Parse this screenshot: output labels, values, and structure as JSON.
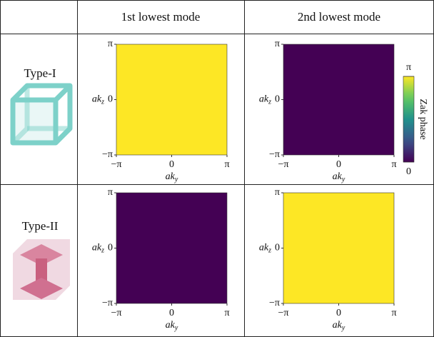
{
  "table": {
    "header": [
      "1st lowest mode",
      "2nd lowest mode"
    ],
    "rows": [
      "Type-I",
      "Type-II"
    ]
  },
  "chart_data": [
    {
      "type": "heatmap",
      "z": [
        [
          3.14159
        ]
      ],
      "xlim": [
        -3.14159,
        3.14159
      ],
      "ylim": [
        -3.14159,
        3.14159
      ],
      "xticks": [
        {
          "value": -3.14159,
          "label": "−π"
        },
        0,
        {
          "value": 3.14159,
          "label": "π"
        }
      ],
      "yticks": [
        {
          "value": -3.14159,
          "label": "−π"
        },
        0,
        {
          "value": 3.14159,
          "label": "π"
        }
      ],
      "xlabel": [
        "ak",
        "y"
      ],
      "ylabel": [
        "ak",
        "z"
      ]
    },
    {
      "type": "heatmap",
      "z": [
        [
          0
        ]
      ],
      "xlim": [
        -3.14159,
        3.14159
      ],
      "ylim": [
        -3.14159,
        3.14159
      ],
      "xticks": [
        {
          "value": -3.14159,
          "label": "−π"
        },
        0,
        {
          "value": 3.14159,
          "label": "π"
        }
      ],
      "yticks": [
        {
          "value": -3.14159,
          "label": "−π"
        },
        0,
        {
          "value": 3.14159,
          "label": "π"
        }
      ],
      "xlabel": [
        "ak",
        "y"
      ],
      "ylabel": [
        "ak",
        "z"
      ]
    },
    {
      "type": "heatmap",
      "z": [
        [
          0
        ]
      ],
      "xlim": [
        -3.14159,
        3.14159
      ],
      "ylim": [
        -3.14159,
        3.14159
      ],
      "xticks": [
        {
          "value": -3.14159,
          "label": "−π"
        },
        0,
        {
          "value": 3.14159,
          "label": "π"
        }
      ],
      "yticks": [
        {
          "value": -3.14159,
          "label": "−π"
        },
        0,
        {
          "value": 3.14159,
          "label": "π"
        }
      ],
      "xlabel": [
        "ak",
        "y"
      ],
      "ylabel": [
        "ak",
        "z"
      ]
    },
    {
      "type": "heatmap",
      "z": [
        [
          3.14159
        ]
      ],
      "xlim": [
        -3.14159,
        3.14159
      ],
      "ylim": [
        -3.14159,
        3.14159
      ],
      "xticks": [
        {
          "value": -3.14159,
          "label": "−π"
        },
        0,
        {
          "value": 3.14159,
          "label": "π"
        }
      ],
      "yticks": [
        {
          "value": -3.14159,
          "label": "−π"
        },
        0,
        {
          "value": 3.14159,
          "label": "π"
        }
      ],
      "xlabel": [
        "ak",
        "y"
      ],
      "ylabel": [
        "ak",
        "z"
      ]
    }
  ],
  "colorbar": {
    "label": "Zak phase",
    "colormap": "viridis",
    "clim": [
      0,
      3.14159
    ],
    "ticks": [
      0,
      {
        "value": 3.14159,
        "label": "π"
      }
    ]
  }
}
